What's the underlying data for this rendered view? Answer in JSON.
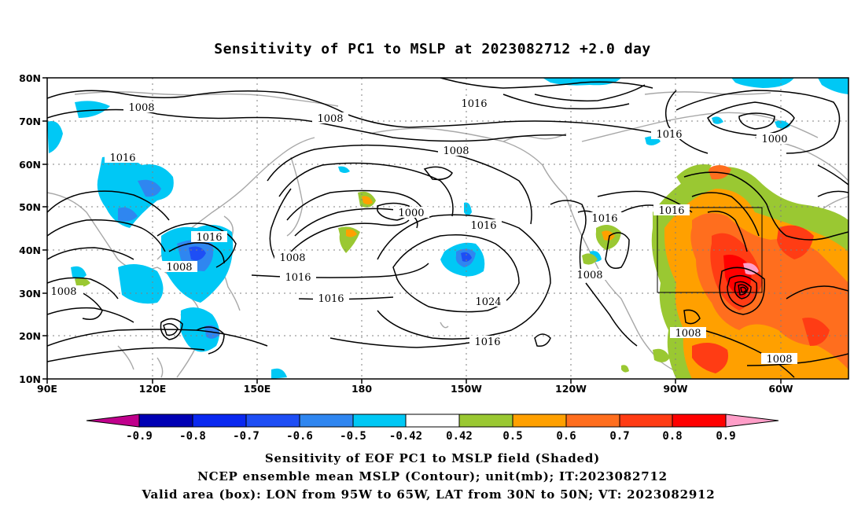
{
  "title": "Sensitivity of PC1 to MSLP at 2023082712 +2.0 day",
  "map": {
    "lon_ticks": [
      "90E",
      "120E",
      "150E",
      "180",
      "150W",
      "120W",
      "90W",
      "60W"
    ],
    "lat_ticks": [
      "80N",
      "70N",
      "60N",
      "50N",
      "40N",
      "30N",
      "20N",
      "10N"
    ],
    "grid": true,
    "contour_labels": [
      {
        "text": "1008"
      },
      {
        "text": "1008"
      },
      {
        "text": "1016"
      },
      {
        "text": "1008"
      },
      {
        "text": "1016"
      },
      {
        "text": "1016"
      },
      {
        "text": "1000"
      },
      {
        "text": "1008"
      },
      {
        "text": "1000"
      },
      {
        "text": "1016"
      },
      {
        "text": "1016"
      },
      {
        "text": "1016"
      },
      {
        "text": "1008"
      },
      {
        "text": "1008"
      },
      {
        "text": "1016"
      },
      {
        "text": "1016"
      },
      {
        "text": "1024"
      },
      {
        "text": "1008"
      },
      {
        "text": "1008"
      },
      {
        "text": "1016"
      },
      {
        "text": "1016"
      },
      {
        "text": "1008"
      }
    ],
    "valid_box": {
      "lon": [
        "95W",
        "65W"
      ],
      "lat": [
        "30N",
        "50N"
      ]
    }
  },
  "colorbar": {
    "labels": [
      "-0.9",
      "-0.8",
      "-0.7",
      "-0.6",
      "-0.5",
      "-0.42",
      "0.42",
      "0.5",
      "0.6",
      "0.7",
      "0.8",
      "0.9"
    ],
    "colors": [
      "#c0008c",
      "#0000b4",
      "#0a28f0",
      "#1e4ef5",
      "#2f86f0",
      "#00c8f5",
      "#ffffff",
      "#9ac832",
      "#ffa000",
      "#ff6e1e",
      "#ff3c14",
      "#ff0000",
      "#ff9ec8"
    ]
  },
  "captions": {
    "line1": "Sensitivity of EOF PC1 to MSLP field (Shaded)",
    "line2": "NCEP ensemble mean MSLP (Contour); unit(mb); IT:2023082712",
    "line3": "Valid area (box): LON from 95W to 65W, LAT from 30N to 50N; VT: 2023082912"
  }
}
